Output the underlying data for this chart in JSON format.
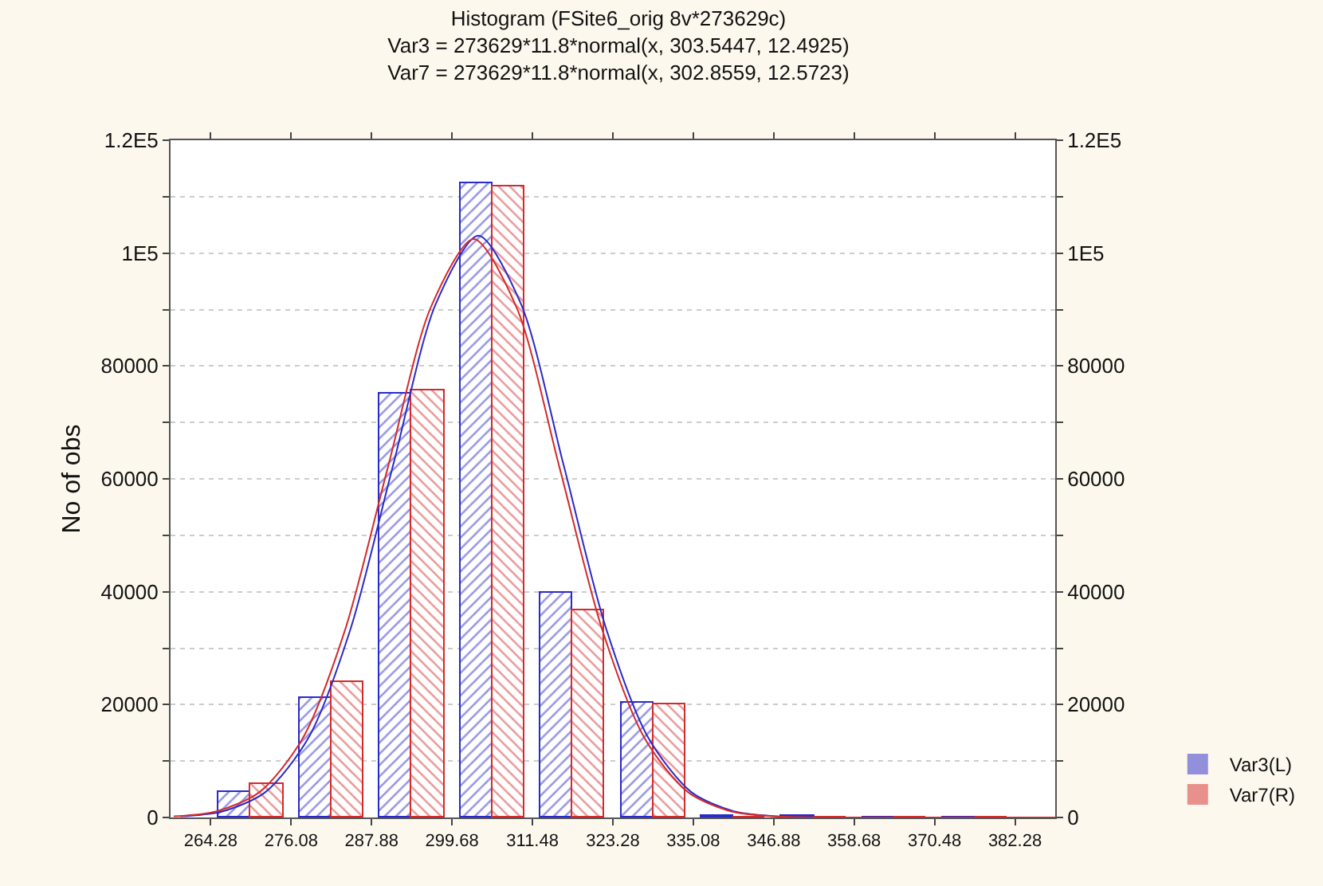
{
  "chart_data": {
    "type": "histogram",
    "title": "Histogram (FSite6_orig 8v*273629c)",
    "subtitle": "Var3 = 273629*11.8*normal(x, 303.5447, 12.4925)\nVar7 = 273629*11.8*normal(x, 302.8559, 12.5723)",
    "ylabel": "No of obs",
    "bins": [
      264.28,
      276.08,
      287.88,
      299.68,
      311.48,
      323.28,
      335.08,
      346.88,
      358.68,
      370.48,
      382.28
    ],
    "series": [
      {
        "name": "Var3(L)",
        "color": "#2a2ac8",
        "values": [
          4500,
          21200,
          75100,
          112400,
          39800,
          20300,
          300,
          200,
          0,
          0
        ]
      },
      {
        "name": "Var7(R)",
        "color": "#d42a2a",
        "values": [
          5900,
          24000,
          75700,
          111700,
          36700,
          20000,
          100,
          100,
          0,
          0
        ]
      },
      {
        "type": "line",
        "color": "#2a2ac8",
        "x": [
          259.82,
          266.07,
          272.31,
          278.56,
          284.81,
          291.05,
          297.3,
          303.54,
          309.79,
          316.04,
          322.28,
          328.53,
          334.78,
          341.02,
          347.27,
          353.51,
          388.18
        ],
        "values": [
          200,
          1100,
          4500,
          14000,
          33500,
          62500,
          91000,
          103100,
          91000,
          62500,
          33500,
          14000,
          4500,
          1100,
          200,
          0,
          0
        ]
      },
      {
        "type": "line",
        "color": "#d42a2a",
        "x": [
          258.85,
          265.14,
          271.43,
          277.71,
          284.0,
          290.28,
          296.57,
          302.86,
          309.14,
          315.43,
          321.71,
          328.0,
          334.29,
          340.57,
          346.86,
          353.15,
          388.18
        ],
        "values": [
          200,
          1100,
          4500,
          13900,
          33300,
          62100,
          90400,
          102500,
          90400,
          62100,
          33300,
          13900,
          4500,
          1100,
          200,
          0,
          0
        ]
      }
    ],
    "xlim": [
      258.38,
      388.18
    ],
    "xticks": [
      264.28,
      276.08,
      287.88,
      299.68,
      311.48,
      323.28,
      335.08,
      346.88,
      358.68,
      370.48,
      382.28
    ],
    "ylim": [
      0,
      120000
    ],
    "yticks": [
      0,
      {
        "value": 10000,
        "label": null
      },
      20000,
      {
        "value": 30000,
        "label": null
      },
      40000,
      {
        "value": 50000,
        "label": null
      },
      60000,
      {
        "value": 70000,
        "label": null
      },
      80000,
      {
        "value": 90000,
        "label": null
      },
      {
        "value": 100000,
        "label": "1E5"
      },
      {
        "value": 110000,
        "label": null
      },
      {
        "value": 120000,
        "label": "1.2E5"
      }
    ],
    "y2lim": [
      0,
      120000
    ],
    "y2ticks": [
      0,
      {
        "value": 10000,
        "label": null
      },
      20000,
      {
        "value": 30000,
        "label": null
      },
      40000,
      {
        "value": 50000,
        "label": null
      },
      60000,
      {
        "value": 70000,
        "label": null
      },
      80000,
      {
        "value": 90000,
        "label": null
      },
      {
        "value": 100000,
        "label": "1E5"
      },
      {
        "value": 110000,
        "label": null
      },
      {
        "value": 120000,
        "label": "1.2E5"
      }
    ],
    "grid": "y",
    "legend": "bottom right"
  }
}
